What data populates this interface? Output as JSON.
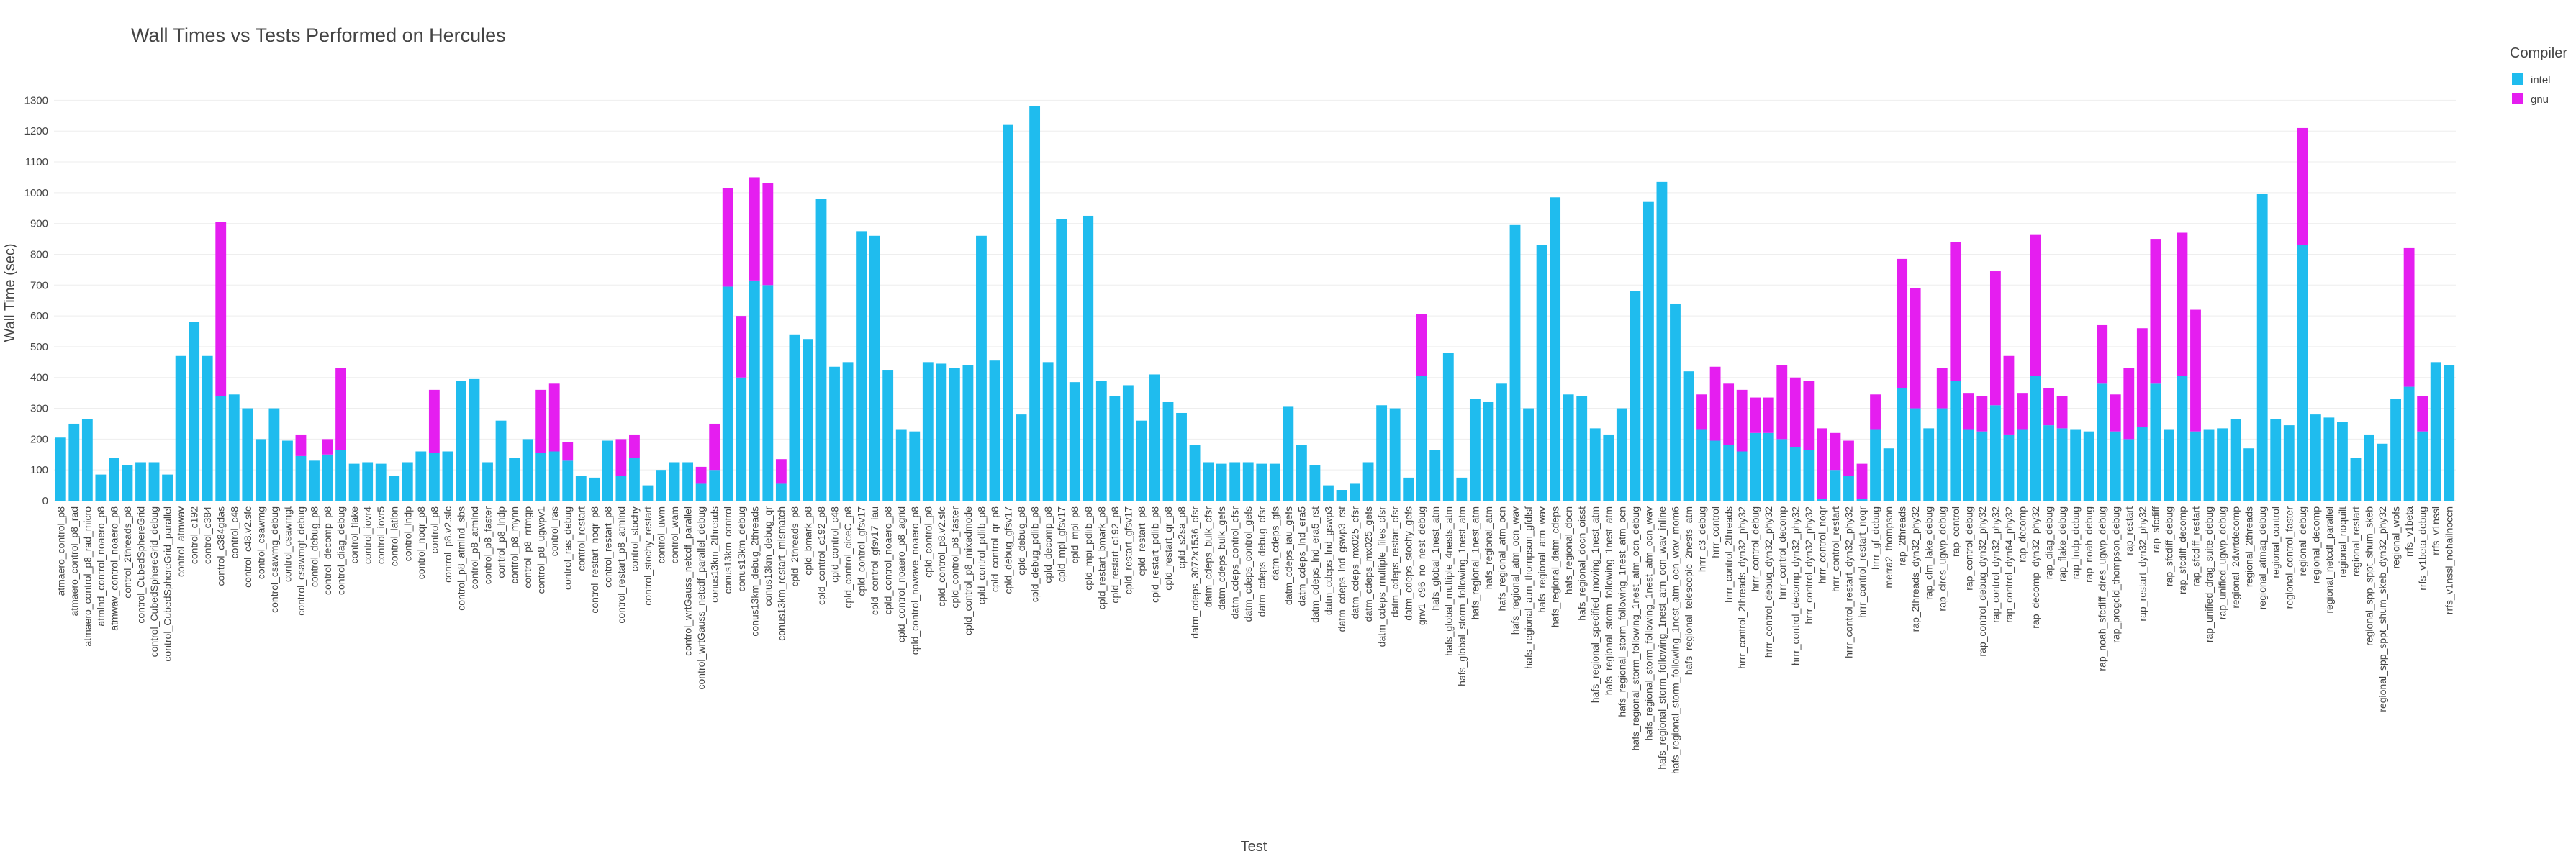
{
  "chart_data": {
    "type": "stacked_bar",
    "title": "Wall Times vs Tests Performed on Hercules",
    "x_label": "Test",
    "y_label": "Wall Time (sec)",
    "legend_title": "Compiler",
    "legend_position": "right",
    "grid": true,
    "ylim": [
      0,
      1350
    ],
    "yticks": [
      0,
      100,
      200,
      300,
      400,
      500,
      600,
      700,
      800,
      900,
      1000,
      1100,
      1200,
      1300
    ],
    "categories": [
      "atmaero_control_p8",
      "atmaero_control_p8_rad",
      "atmaero_control_p8_rad_micro",
      "atmlnd_control_noaero_p8",
      "atmwav_control_noaero_p8",
      "control_2threads_p8",
      "control_CubedSphereGrid",
      "control_CubedSphereGrid_debug",
      "control_CubedSphereGrid_parallel",
      "control_atmwav",
      "control_c192",
      "control_c384",
      "control_c384gdas",
      "control_c48",
      "control_c48.v2.sfc",
      "control_csawmg",
      "control_csawmg_debug",
      "control_csawmgt",
      "control_csawmgt_debug",
      "control_debug_p8",
      "control_decomp_p8",
      "control_diag_debug",
      "control_flake",
      "control_iovr4",
      "control_iovr5",
      "control_latlon",
      "control_lndp",
      "control_noqr_p8",
      "control_p8",
      "control_p8.v2.sfc",
      "control_p8_atmlnd_sbs",
      "control_p8_atmlnd",
      "control_p8_faster",
      "control_p8_lndp",
      "control_p8_mynn",
      "control_p8_rrtmgp",
      "control_p8_ugwpv1",
      "control_ras",
      "control_ras_debug",
      "control_restart",
      "control_restart_noqr_p8",
      "control_restart_p8",
      "control_restart_p8_atmlnd",
      "control_stochy",
      "control_stochy_restart",
      "control_uwm",
      "control_wam",
      "control_wrtGauss_netcdf_parallel",
      "control_wrtGauss_netcdf_parallel_debug",
      "conus13km_2threads",
      "conus13km_control",
      "conus13km_debug",
      "conus13km_debug_2threads",
      "conus13km_debug_qr",
      "conus13km_restart_mismatch",
      "cpld_2threads_p8",
      "cpld_bmark_p8",
      "cpld_control_c192_p8",
      "cpld_control_c48",
      "cpld_control_ciceC_p8",
      "cpld_control_gfsv17",
      "cpld_control_gfsv17_iau",
      "cpld_control_noaero_p8",
      "cpld_control_noaero_p8_agrid",
      "cpld_control_nowave_noaero_p8",
      "cpld_control_p8",
      "cpld_control_p8.v2.sfc",
      "cpld_control_p8_faster",
      "cpld_control_p8_mixedmode",
      "cpld_control_pdlib_p8",
      "cpld_control_qr_p8",
      "cpld_debug_gfsv17",
      "cpld_debug_p8",
      "cpld_debug_pdlib_p8",
      "cpld_decomp_p8",
      "cpld_mpi_gfsv17",
      "cpld_mpi_p8",
      "cpld_mpi_pdlib_p8",
      "cpld_restart_bmark_p8",
      "cpld_restart_c192_p8",
      "cpld_restart_gfsv17",
      "cpld_restart_p8",
      "cpld_restart_pdlib_p8",
      "cpld_restart_qr_p8",
      "cpld_s2sa_p8",
      "datm_cdeps_3072x1536_cfsr",
      "datm_cdeps_bulk_cfsr",
      "datm_cdeps_bulk_gefs",
      "datm_cdeps_control_cfsr",
      "datm_cdeps_control_gefs",
      "datm_cdeps_debug_cfsr",
      "datm_cdeps_gfs",
      "datm_cdeps_iau_gefs",
      "datm_cdeps_lnd_era5",
      "datm_cdeps_lnd_era5_rst",
      "datm_cdeps_lnd_gswp3",
      "datm_cdeps_lnd_gswp3_rst",
      "datm_cdeps_mx025_cfsr",
      "datm_cdeps_mx025_gefs",
      "datm_cdeps_multiple_files_cfsr",
      "datm_cdeps_restart_cfsr",
      "datm_cdeps_stochy_gefs",
      "gnv1_c96_no_nest_debug",
      "hafs_global_1nest_atm",
      "hafs_global_multiple_4nests_atm",
      "hafs_global_storm_following_1nest_atm",
      "hafs_regional_1nest_atm",
      "hafs_regional_atm",
      "hafs_regional_atm_ocn",
      "hafs_regional_atm_ocn_wav",
      "hafs_regional_atm_thompson_gfdlsf",
      "hafs_regional_atm_wav",
      "hafs_regional_datm_cdeps",
      "hafs_regional_docn",
      "hafs_regional_docn_oisst",
      "hafs_regional_specified_moving_1nest_atm",
      "hafs_regional_storm_following_1nest_atm",
      "hafs_regional_storm_following_1nest_atm_ocn",
      "hafs_regional_storm_following_1nest_atm_ocn_debug",
      "hafs_regional_storm_following_1nest_atm_ocn_wav",
      "hafs_regional_storm_following_1nest_atm_ocn_wav_inline",
      "hafs_regional_storm_following_1nest_atm_ocn_wav_mom6",
      "hafs_regional_telescopic_2nests_atm",
      "hrrr_c3_debug",
      "hrrr_control",
      "hrrr_control_2threads",
      "hrrr_control_2threads_dyn32_phy32",
      "hrrr_control_debug",
      "hrrr_control_debug_dyn32_phy32",
      "hrrr_control_decomp",
      "hrrr_control_decomp_dyn32_phy32",
      "hrrr_control_dyn32_phy32",
      "hrrr_control_noqr",
      "hrrr_control_restart",
      "hrrr_control_restart_dyn32_phy32",
      "hrrr_control_restart_noqr",
      "hrrr_gf_debug",
      "merra2_thompson",
      "rap_2threads",
      "rap_2threads_dyn32_phy32",
      "rap_clm_lake_debug",
      "rap_cires_ugwp_debug",
      "rap_control",
      "rap_control_debug",
      "rap_control_debug_dyn32_phy32",
      "rap_control_dyn32_phy32",
      "rap_control_dyn64_phy32",
      "rap_decomp",
      "rap_decomp_dyn32_phy32",
      "rap_diag_debug",
      "rap_flake_debug",
      "rap_lndp_debug",
      "rap_noah_debug",
      "rap_noah_sfcdiff_cires_ugwp_debug",
      "rap_progcld_thompson_debug",
      "rap_restart",
      "rap_restart_dyn32_phy32",
      "rap_sfcdiff",
      "rap_sfcdiff_debug",
      "rap_sfcdiff_decomp",
      "rap_sfcdiff_restart",
      "rap_unified_drag_suite_debug",
      "rap_unified_ugwp_debug",
      "regional_2dwrtdecomp",
      "regional_2threads",
      "regional_atmaq_debug",
      "regional_control",
      "regional_control_faster",
      "regional_debug",
      "regional_decomp",
      "regional_netcdf_parallel",
      "regional_noquilt",
      "regional_restart",
      "regional_spp_sppt_shum_skeb",
      "regional_spp_sppt_shum_skeb_dyn32_phy32",
      "regional_wofs",
      "rrfs_v1beta",
      "rrfs_v1beta_debug",
      "rrfs_v1nssl",
      "rrfs_v1nssl_nohailnoccn"
    ],
    "series": [
      {
        "name": "intel",
        "color": "#1fbcee",
        "values": [
          205,
          250,
          265,
          85,
          140,
          115,
          125,
          125,
          85,
          470,
          580,
          470,
          340,
          345,
          300,
          200,
          300,
          195,
          145,
          130,
          150,
          165,
          120,
          125,
          120,
          80,
          125,
          160,
          155,
          160,
          390,
          395,
          125,
          260,
          140,
          200,
          155,
          160,
          130,
          80,
          75,
          195,
          80,
          140,
          50,
          100,
          125,
          125,
          55,
          100,
          695,
          400,
          715,
          700,
          55,
          540,
          525,
          980,
          435,
          450,
          875,
          860,
          425,
          230,
          225,
          450,
          445,
          430,
          440,
          860,
          455,
          1220,
          280,
          1280,
          450,
          915,
          385,
          925,
          390,
          340,
          375,
          260,
          410,
          320,
          285,
          180,
          125,
          120,
          125,
          125,
          120,
          120,
          305,
          180,
          115,
          50,
          35,
          55,
          125,
          310,
          300,
          75,
          405,
          165,
          480,
          75,
          330,
          320,
          380,
          895,
          300,
          830,
          985,
          345,
          340,
          235,
          215,
          300,
          680,
          970,
          1035,
          640,
          420,
          230,
          195,
          180,
          160,
          220,
          220,
          200,
          175,
          165,
          5,
          100,
          80,
          5,
          230,
          170,
          365,
          300,
          235,
          300,
          390,
          230,
          225,
          310,
          215,
          230,
          405,
          245,
          235,
          230,
          225,
          380,
          225,
          200,
          240,
          380,
          230,
          405,
          225,
          230,
          235,
          265,
          170,
          995,
          265,
          245,
          830,
          280,
          270,
          255,
          140,
          215,
          185,
          330,
          370,
          225,
          450,
          440
        ]
      },
      {
        "name": "gnu",
        "color": "#e51ef0",
        "values": [
          null,
          null,
          null,
          null,
          null,
          null,
          null,
          null,
          null,
          null,
          null,
          null,
          565,
          null,
          null,
          null,
          null,
          null,
          70,
          null,
          50,
          265,
          null,
          null,
          null,
          null,
          null,
          null,
          205,
          null,
          null,
          null,
          null,
          null,
          null,
          null,
          205,
          220,
          60,
          null,
          null,
          null,
          120,
          75,
          null,
          null,
          null,
          null,
          55,
          150,
          320,
          200,
          335,
          330,
          80,
          null,
          null,
          null,
          null,
          null,
          null,
          null,
          null,
          null,
          null,
          null,
          null,
          null,
          null,
          null,
          null,
          null,
          null,
          null,
          null,
          null,
          null,
          null,
          null,
          null,
          null,
          null,
          null,
          null,
          null,
          null,
          null,
          null,
          null,
          null,
          null,
          null,
          null,
          null,
          null,
          null,
          null,
          null,
          null,
          null,
          null,
          null,
          200,
          null,
          null,
          null,
          null,
          null,
          null,
          null,
          null,
          null,
          null,
          null,
          null,
          null,
          null,
          null,
          null,
          null,
          null,
          null,
          null,
          115,
          240,
          200,
          200,
          115,
          115,
          240,
          225,
          225,
          230,
          120,
          115,
          115,
          115,
          null,
          420,
          390,
          null,
          130,
          450,
          120,
          115,
          435,
          255,
          120,
          460,
          120,
          105,
          null,
          null,
          190,
          120,
          230,
          320,
          470,
          null,
          465,
          395,
          null,
          null,
          null,
          null,
          null,
          null,
          null,
          380,
          null,
          null,
          null,
          null,
          null,
          null,
          null,
          450,
          115,
          null,
          null
        ]
      }
    ]
  }
}
